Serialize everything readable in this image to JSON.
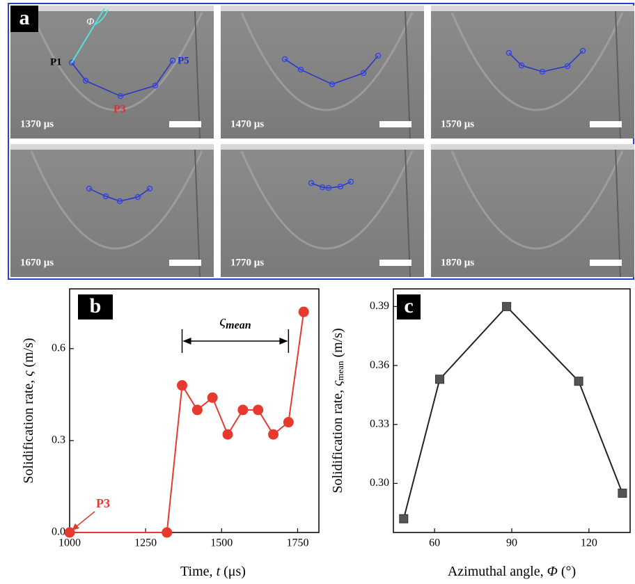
{
  "panel_a": {
    "panel_label": "a",
    "angle_symbol": "Φ",
    "point_labels": [
      "P1",
      "P3",
      "P5"
    ],
    "frames": [
      "1370 μs",
      "1470 μs",
      "1570 μs",
      "1670 μs",
      "1770 μs",
      "1870 μs"
    ]
  },
  "chart_data": [
    {
      "type": "line",
      "panel_label": "b",
      "x_label": [
        "Time, ",
        "t",
        " (μs)"
      ],
      "y_label": [
        "Solidification rate, ",
        "ς",
        " (m/s)"
      ],
      "annotation": "P3",
      "span_label": [
        "ς",
        "mean"
      ],
      "xlim": [
        1000,
        1820
      ],
      "ylim": [
        0,
        0.795
      ],
      "xticks": [
        1000,
        1250,
        1500,
        1750
      ],
      "yticks": [
        {
          "value": 0,
          "label": "0.0"
        },
        {
          "value": 0.3,
          "label": "0.3"
        },
        {
          "value": 0.6,
          "label": "0.6"
        }
      ],
      "x": [
        1000,
        1320,
        1370,
        1420,
        1470,
        1520,
        1570,
        1620,
        1670,
        1720,
        1770
      ],
      "series": [
        {
          "color": "#e8392f",
          "marker": "circle",
          "values": [
            0,
            0,
            0.48,
            0.4,
            0.44,
            0.32,
            0.4,
            0.4,
            0.32,
            0.36,
            0.72
          ]
        }
      ]
    },
    {
      "type": "line",
      "panel_label": "c",
      "x_label": [
        "Azimuthal angle, ",
        "Φ",
        " (°)"
      ],
      "y_label": [
        "Solidification rate, ",
        "ς",
        "mean",
        " (m/s)"
      ],
      "xlim": [
        44,
        136
      ],
      "ylim": [
        0.275,
        0.399
      ],
      "xticks": [
        60,
        90,
        120
      ],
      "yticks": [
        {
          "value": 0.3,
          "label": "0.30"
        },
        {
          "value": 0.33,
          "label": "0.33"
        },
        {
          "value": 0.36,
          "label": "0.36"
        },
        {
          "value": 0.39,
          "label": "0.39"
        }
      ],
      "x": [
        48,
        62,
        88,
        116,
        133
      ],
      "series": [
        {
          "color": "#222222",
          "marker": "square",
          "values": [
            0.282,
            0.353,
            0.39,
            0.352,
            0.295
          ]
        }
      ]
    }
  ]
}
